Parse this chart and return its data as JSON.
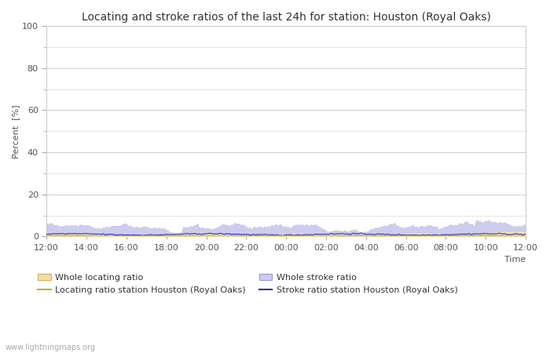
{
  "title": "Locating and stroke ratios of the last 24h for station: Houston (Royal Oaks)",
  "xlabel": "Time",
  "ylabel": "Percent  [%]",
  "xlim": [
    0,
    144
  ],
  "ylim": [
    0,
    100
  ],
  "yticks": [
    0,
    20,
    40,
    60,
    80,
    100
  ],
  "ytick_minor": [
    10,
    30,
    50,
    70,
    90
  ],
  "xtick_labels": [
    "12:00",
    "14:00",
    "16:00",
    "18:00",
    "20:00",
    "22:00",
    "00:00",
    "02:00",
    "04:00",
    "06:00",
    "08:00",
    "10:00",
    "12:00"
  ],
  "background_color": "#ffffff",
  "plot_bg_color": "#ffffff",
  "grid_color": "#cccccc",
  "whole_stroke_fill_color": "#ccccee",
  "whole_locating_fill_color": "#f5dfa0",
  "station_stroke_line_color": "#3333aa",
  "station_locating_line_color": "#ccaa33",
  "watermark": "www.lightningmaps.org",
  "title_fontsize": 10,
  "axis_fontsize": 8,
  "tick_fontsize": 8,
  "legend_fontsize": 8
}
